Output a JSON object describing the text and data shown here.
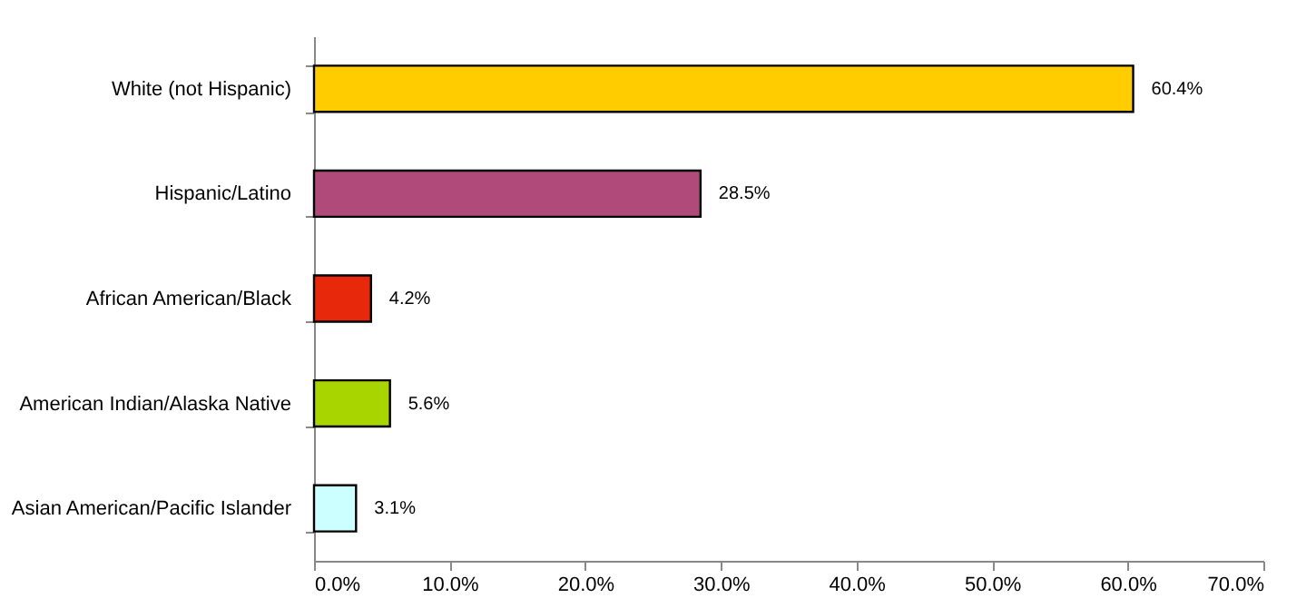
{
  "chart_data": {
    "type": "bar",
    "orientation": "horizontal",
    "categories": [
      "White (not Hispanic)",
      "Hispanic/Latino",
      "African American/Black",
      "American Indian/Alaska Native",
      "Asian American/Pacific Islander"
    ],
    "values": [
      60.4,
      28.5,
      4.2,
      5.6,
      3.1
    ],
    "colors": [
      "#ffcc00",
      "#b04a7a",
      "#e8280a",
      "#a8d400",
      "#ccffff"
    ],
    "value_labels": [
      "60.4%",
      "28.5%",
      "4.2%",
      "5.6%",
      "3.1%"
    ],
    "xlim": [
      0,
      70
    ],
    "xticks": [
      {
        "value": 0,
        "label": "0.0%"
      },
      {
        "value": 10,
        "label": "10.0%"
      },
      {
        "value": 20,
        "label": "20.0%"
      },
      {
        "value": 30,
        "label": "30.0%"
      },
      {
        "value": 40,
        "label": "40.0%"
      },
      {
        "value": 50,
        "label": "50.0%"
      },
      {
        "value": 60,
        "label": "60.0%"
      },
      {
        "value": 70,
        "label": "70.0%"
      }
    ],
    "grid": false
  }
}
